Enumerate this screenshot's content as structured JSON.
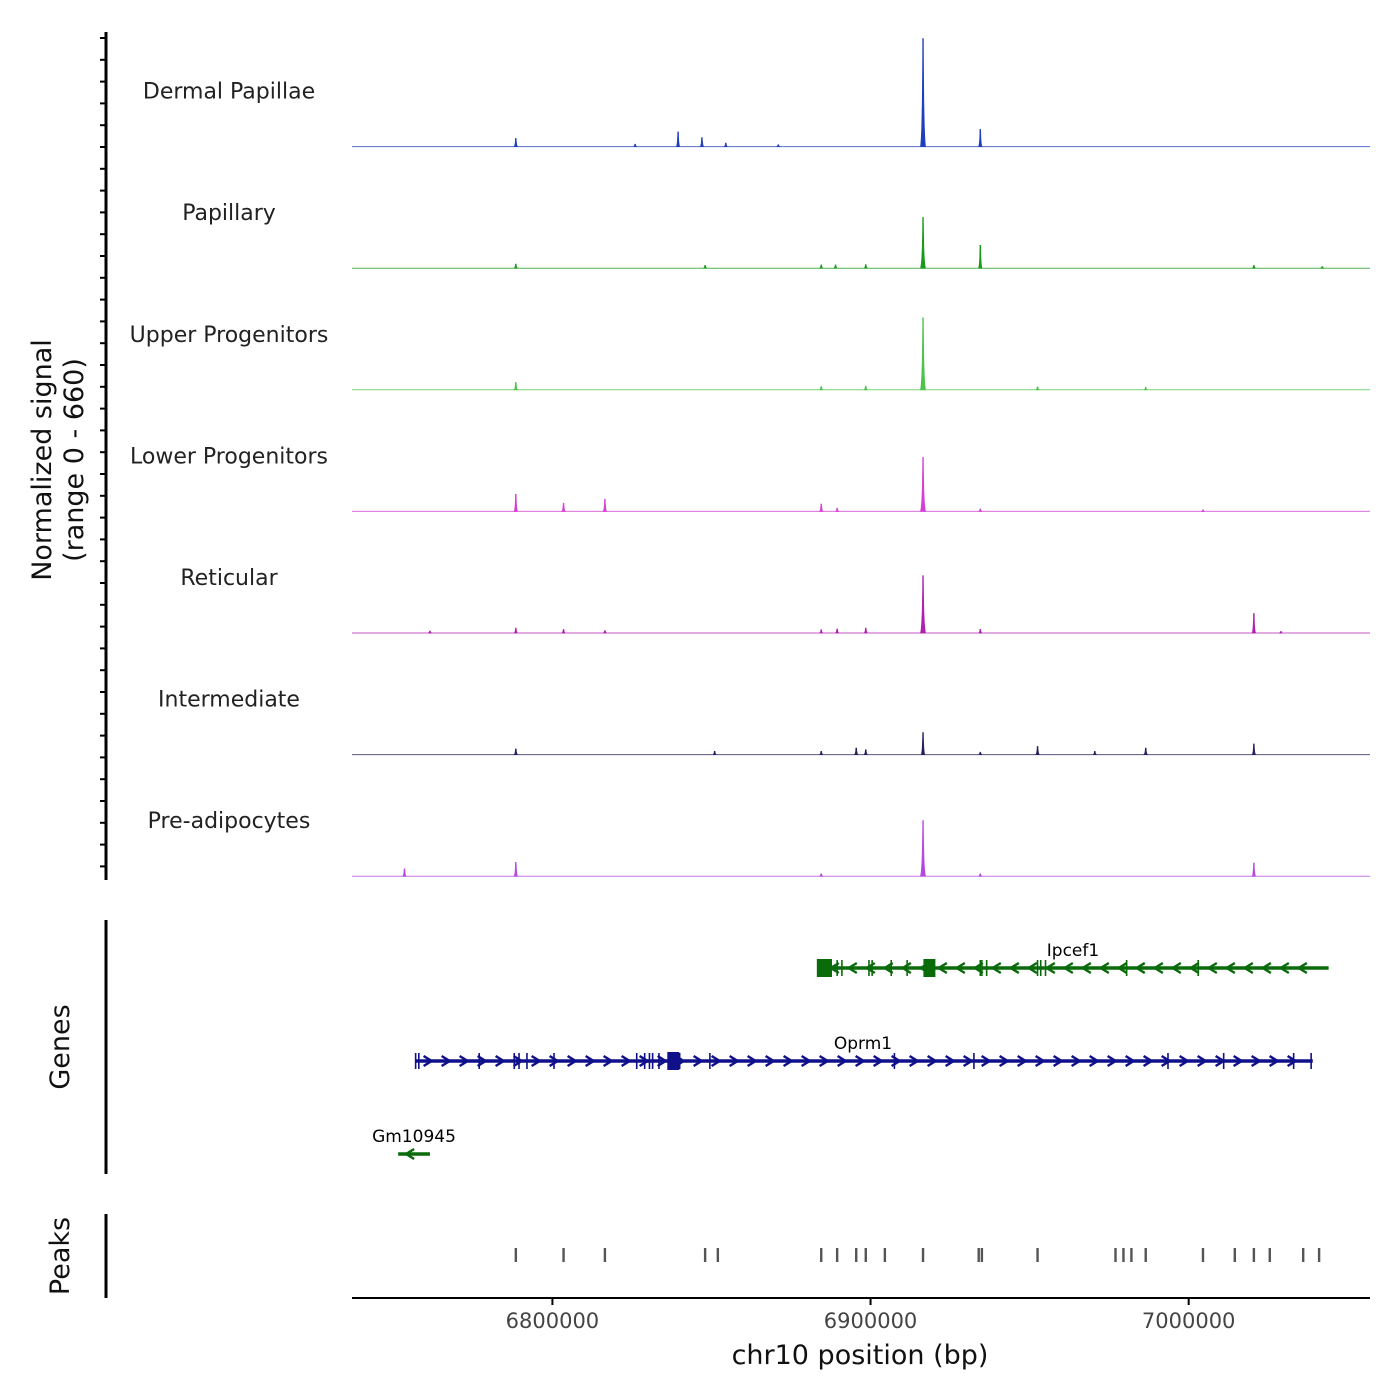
{
  "chart_data": {
    "type": "coverage-track",
    "y_axis_label_line1": "Normalized signal",
    "y_axis_label_line2": "(range 0 - 660)",
    "signal_range": [
      0,
      660
    ],
    "x_axis_label": "chr10 position (bp)",
    "xlim": [
      6737000,
      7057000
    ],
    "x_ticks": [
      6800000,
      6900000,
      7000000
    ],
    "x_tick_labels": [
      "6800000",
      "6900000",
      "7000000"
    ],
    "tracks": [
      {
        "name": "Dermal Papillae",
        "color": "#1f3fbf",
        "peaks": [
          [
            6788500,
            50
          ],
          [
            6839500,
            90
          ],
          [
            6847000,
            55
          ],
          [
            6854500,
            22
          ],
          [
            6916500,
            660
          ],
          [
            6934500,
            105
          ],
          [
            6826000,
            15
          ],
          [
            6871000,
            12
          ]
        ]
      },
      {
        "name": "Papillary",
        "color": "#1a9a1a",
        "peaks": [
          [
            6788500,
            25
          ],
          [
            6916500,
            310
          ],
          [
            6934500,
            140
          ],
          [
            6848000,
            18
          ],
          [
            6884500,
            20
          ],
          [
            6889000,
            20
          ],
          [
            6898500,
            22
          ],
          [
            7020500,
            18
          ],
          [
            7042000,
            10
          ]
        ]
      },
      {
        "name": "Upper Progenitors",
        "color": "#4cc34c",
        "peaks": [
          [
            6788500,
            45
          ],
          [
            6916500,
            440
          ],
          [
            6884500,
            20
          ],
          [
            6898500,
            22
          ],
          [
            6952500,
            18
          ],
          [
            6986500,
            15
          ]
        ]
      },
      {
        "name": "Lower Progenitors",
        "color": "#d63fd6",
        "peaks": [
          [
            6788500,
            105
          ],
          [
            6803500,
            50
          ],
          [
            6816500,
            75
          ],
          [
            6884500,
            45
          ],
          [
            6889500,
            20
          ],
          [
            6916500,
            330
          ],
          [
            6934500,
            15
          ],
          [
            7004500,
            10
          ]
        ]
      },
      {
        "name": "Reticular",
        "color": "#b01fb0",
        "peaks": [
          [
            6761500,
            12
          ],
          [
            6788500,
            30
          ],
          [
            6803500,
            22
          ],
          [
            6816500,
            15
          ],
          [
            6884500,
            20
          ],
          [
            6889500,
            25
          ],
          [
            6898500,
            30
          ],
          [
            6916500,
            350
          ],
          [
            6934500,
            22
          ],
          [
            7020500,
            120
          ],
          [
            7029000,
            10
          ]
        ]
      },
      {
        "name": "Intermediate",
        "color": "#2a1b5a",
        "peaks": [
          [
            6788500,
            35
          ],
          [
            6851000,
            20
          ],
          [
            6884500,
            20
          ],
          [
            6895500,
            40
          ],
          [
            6898500,
            30
          ],
          [
            6916500,
            135
          ],
          [
            6934500,
            15
          ],
          [
            6952500,
            50
          ],
          [
            6970500,
            20
          ],
          [
            6986500,
            40
          ],
          [
            7020500,
            65
          ]
        ]
      },
      {
        "name": "Pre-adipocytes",
        "color": "#b448e0",
        "peaks": [
          [
            6753500,
            45
          ],
          [
            6788500,
            85
          ],
          [
            6916500,
            340
          ],
          [
            6934500,
            15
          ],
          [
            7020500,
            80
          ],
          [
            6884500,
            15
          ]
        ]
      }
    ],
    "genes_label": "Genes",
    "genes": [
      {
        "name": "Ipcef1",
        "strand": "-",
        "start": 6885000,
        "end": 7044000,
        "color": "#0a6b0a",
        "exons": [
          6885000,
          6886000,
          6887000,
          6889500,
          6891000,
          6899500,
          6900500,
          6906500,
          6911500,
          6918500,
          6919500,
          6934500,
          6935000,
          6936500,
          6952500,
          6953500,
          6955000,
          6980500,
          7003000
        ]
      },
      {
        "name": "Oprm1",
        "strand": "+",
        "start": 6757000,
        "end": 7039000,
        "color": "#10108a",
        "exons": [
          6757000,
          6758000,
          6777000,
          6788000,
          6789500,
          6792000,
          6800500,
          6826500,
          6829000,
          6830500,
          6831500,
          6833500,
          6838000,
          6840000,
          6849500,
          6907500,
          6932500,
          6993500,
          7011000,
          7033000,
          7038500
        ]
      },
      {
        "name": "Gm10945",
        "strand": "-",
        "start": 6751500,
        "end": 6761500,
        "color": "#0a6b0a",
        "exons": []
      }
    ],
    "peaks_label": "Peaks",
    "peak_positions": [
      6788500,
      6803500,
      6816500,
      6848000,
      6852000,
      6884500,
      6889500,
      6895500,
      6898500,
      6904500,
      6916500,
      6934000,
      6935000,
      6952500,
      6977000,
      6979500,
      6982000,
      6986500,
      7004500,
      7014500,
      7020500,
      7025500,
      7036000,
      7041000
    ]
  }
}
